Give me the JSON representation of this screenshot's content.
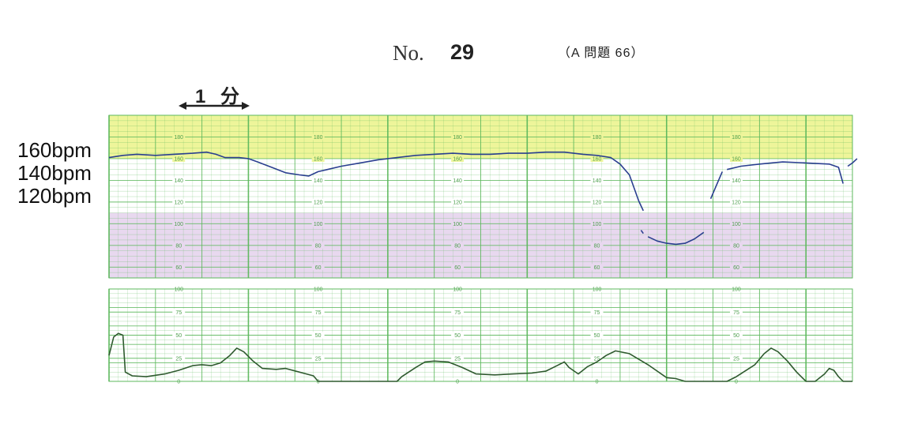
{
  "header": {
    "no_label": "No.",
    "no_value": "29",
    "ref": "（A 問題 66）",
    "minute_label": "1 分"
  },
  "bpm_labels": [
    "160bpm",
    "140bpm",
    "120bpm"
  ],
  "colors": {
    "grid": "#5cb85c",
    "band_high": "#eef59a",
    "band_low": "#e8d8ef",
    "fhr_trace": "#2a3f8f",
    "uc_trace": "#2f5a2f"
  },
  "chart_data": [
    {
      "type": "line",
      "name": "fhr",
      "ylim": [
        50,
        200
      ],
      "xlim": [
        0,
        16
      ],
      "yticks": [
        60,
        80,
        100,
        120,
        140,
        160,
        180
      ],
      "tick_label_columns": [
        1.5,
        4.5,
        7.5,
        10.5,
        13.5
      ],
      "bands": [
        {
          "from": 160,
          "to": 200
        },
        {
          "from": 50,
          "to": 110
        }
      ],
      "segments": [
        [
          [
            0,
            161
          ],
          [
            0.3,
            163
          ],
          [
            0.6,
            164
          ],
          [
            1.0,
            163
          ],
          [
            1.4,
            164
          ],
          [
            1.8,
            165
          ],
          [
            2.1,
            166
          ],
          [
            2.3,
            164
          ],
          [
            2.5,
            161
          ],
          [
            2.8,
            161
          ],
          [
            3.0,
            160
          ],
          [
            3.2,
            157
          ],
          [
            3.5,
            152
          ],
          [
            3.8,
            147
          ],
          [
            4.1,
            145
          ],
          [
            4.3,
            144
          ],
          [
            4.5,
            148
          ],
          [
            4.7,
            150
          ],
          [
            5.0,
            153
          ],
          [
            5.4,
            156
          ],
          [
            5.8,
            159
          ],
          [
            6.2,
            161
          ],
          [
            6.6,
            163
          ],
          [
            7.0,
            164
          ],
          [
            7.4,
            165
          ],
          [
            7.8,
            164
          ],
          [
            8.2,
            164
          ],
          [
            8.6,
            165
          ],
          [
            9.0,
            165
          ],
          [
            9.4,
            166
          ],
          [
            9.8,
            166
          ],
          [
            10.0,
            165
          ],
          [
            10.2,
            164
          ],
          [
            10.5,
            163
          ],
          [
            10.8,
            161
          ],
          [
            11.0,
            155
          ],
          [
            11.2,
            145
          ],
          [
            11.3,
            133
          ],
          [
            11.4,
            121
          ],
          [
            11.5,
            112
          ]
        ],
        [
          [
            11.45,
            94
          ],
          [
            11.5,
            91
          ]
        ],
        [
          [
            11.6,
            88
          ],
          [
            11.8,
            84
          ],
          [
            12.0,
            82
          ],
          [
            12.2,
            81
          ],
          [
            12.4,
            82
          ],
          [
            12.6,
            86
          ],
          [
            12.8,
            92
          ]
        ],
        [
          [
            12.95,
            123
          ],
          [
            13.1,
            138
          ],
          [
            13.2,
            148
          ]
        ],
        [
          [
            13.3,
            150
          ],
          [
            13.6,
            153
          ],
          [
            14.0,
            155
          ],
          [
            14.5,
            157
          ],
          [
            15.0,
            156
          ],
          [
            15.5,
            155
          ],
          [
            15.7,
            152
          ],
          [
            15.8,
            137
          ]
        ],
        [
          [
            15.9,
            153
          ],
          [
            16.0,
            156
          ],
          [
            16.1,
            160
          ]
        ]
      ]
    },
    {
      "type": "line",
      "name": "uterine_contraction",
      "ylim": [
        0,
        100
      ],
      "xlim": [
        0,
        16
      ],
      "yticks": [
        0,
        25,
        50,
        75,
        100
      ],
      "tick_label_columns": [
        1.5,
        4.5,
        7.5,
        10.5,
        13.5
      ],
      "values": [
        [
          0,
          28
        ],
        [
          0.1,
          48
        ],
        [
          0.2,
          52
        ],
        [
          0.3,
          50
        ],
        [
          0.35,
          10
        ],
        [
          0.5,
          6
        ],
        [
          0.8,
          5
        ],
        [
          1.2,
          8
        ],
        [
          1.5,
          12
        ],
        [
          1.8,
          17
        ],
        [
          2.0,
          18
        ],
        [
          2.2,
          17
        ],
        [
          2.4,
          20
        ],
        [
          2.6,
          28
        ],
        [
          2.75,
          36
        ],
        [
          2.9,
          32
        ],
        [
          3.1,
          22
        ],
        [
          3.3,
          14
        ],
        [
          3.6,
          13
        ],
        [
          3.8,
          14
        ],
        [
          4.1,
          10
        ],
        [
          4.4,
          6
        ],
        [
          4.5,
          0
        ],
        [
          6.2,
          0
        ],
        [
          6.3,
          5
        ],
        [
          6.6,
          15
        ],
        [
          6.8,
          21
        ],
        [
          7.0,
          22
        ],
        [
          7.3,
          21
        ],
        [
          7.6,
          15
        ],
        [
          7.9,
          8
        ],
        [
          8.3,
          7
        ],
        [
          8.7,
          8
        ],
        [
          9.1,
          9
        ],
        [
          9.4,
          11
        ],
        [
          9.6,
          16
        ],
        [
          9.8,
          21
        ],
        [
          9.9,
          15
        ],
        [
          10.1,
          8
        ],
        [
          10.3,
          16
        ],
        [
          10.5,
          21
        ],
        [
          10.7,
          28
        ],
        [
          10.9,
          33
        ],
        [
          11.2,
          30
        ],
        [
          11.6,
          18
        ],
        [
          12.0,
          4
        ],
        [
          12.2,
          3
        ],
        [
          12.4,
          0
        ],
        [
          13.3,
          0
        ],
        [
          13.5,
          5
        ],
        [
          13.9,
          18
        ],
        [
          14.1,
          30
        ],
        [
          14.25,
          36
        ],
        [
          14.4,
          32
        ],
        [
          14.6,
          22
        ],
        [
          14.8,
          10
        ],
        [
          15.0,
          0
        ],
        [
          15.2,
          0
        ],
        [
          15.4,
          8
        ],
        [
          15.5,
          14
        ],
        [
          15.6,
          12
        ],
        [
          15.7,
          5
        ],
        [
          15.8,
          0
        ],
        [
          16.0,
          0
        ]
      ]
    }
  ]
}
